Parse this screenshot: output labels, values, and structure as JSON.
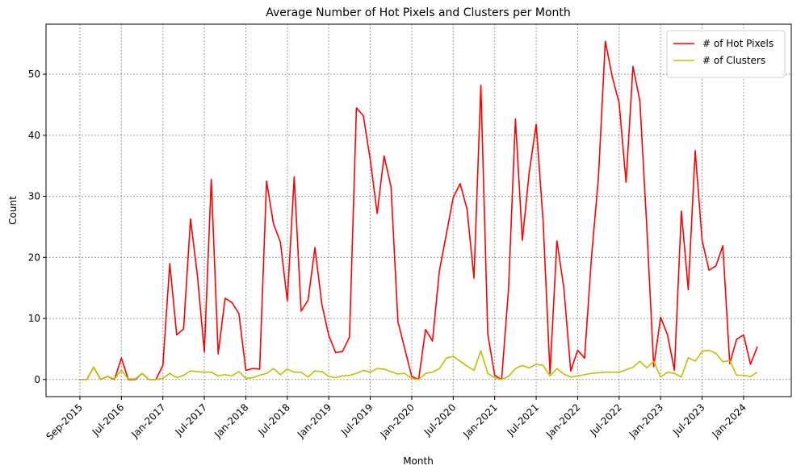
{
  "chart_data": {
    "type": "line",
    "title": "Average Number of Hot Pixels and Clusters per Month",
    "x_label": "Month",
    "y_label": "Count",
    "categories": [
      "Sep-2015",
      null,
      null,
      null,
      null,
      null,
      "Jul-2016",
      null,
      null,
      null,
      null,
      null,
      "Jan-2017",
      null,
      null,
      null,
      null,
      null,
      "Jul-2017",
      null,
      null,
      null,
      null,
      null,
      "Jan-2018",
      null,
      null,
      null,
      null,
      null,
      "Jul-2018",
      null,
      null,
      null,
      null,
      null,
      "Jan-2019",
      null,
      null,
      null,
      null,
      null,
      "Jul-2019",
      null,
      null,
      null,
      null,
      null,
      "Jan-2020",
      null,
      null,
      null,
      null,
      null,
      "Jul-2020",
      null,
      null,
      null,
      null,
      null,
      "Jan-2021",
      null,
      null,
      null,
      null,
      null,
      "Jul-2021",
      null,
      null,
      null,
      null,
      null,
      "Jan-2022",
      null,
      null,
      null,
      null,
      null,
      "Jul-2022",
      null,
      null,
      null,
      null,
      null,
      "Jan-2023",
      null,
      null,
      null,
      null,
      null,
      "Jul-2023",
      null,
      null,
      null,
      null,
      null,
      "Jan-2024",
      null,
      null
    ],
    "series": [
      {
        "name": "# of Hot Pixels",
        "color": "#ff0000",
        "values": [
          0,
          0,
          2,
          0,
          0.5,
          0,
          3.5,
          0,
          0,
          1,
          0,
          0,
          2.3,
          19,
          7.3,
          8.3,
          26.3,
          17,
          4.5,
          32.8,
          4.2,
          13.3,
          12.6,
          10.8,
          1.5,
          1.8,
          1.7,
          32.5,
          25.5,
          22.5,
          12.9,
          33.2,
          11.2,
          13,
          21.6,
          12.3,
          7.2,
          4.4,
          4.6,
          7,
          44.5,
          43.2,
          36,
          27.2,
          36.6,
          31.6,
          9.5,
          5,
          0.5,
          0,
          8.2,
          6.3,
          17.8,
          23.8,
          29.8,
          32.1,
          27.9,
          16.6,
          48.2,
          7.4,
          0.7,
          0,
          14.8,
          42.7,
          22.8,
          34,
          41.8,
          26,
          1,
          22.7,
          15,
          1.4,
          4.8,
          3.5,
          20,
          33,
          55.4,
          49.6,
          45.3,
          32.3,
          51.3,
          45.6,
          25,
          2.1,
          10.2,
          7.3,
          1.5,
          27.6,
          14.7,
          37.5,
          22.8,
          17.9,
          18.6,
          21.9,
          2.6,
          6.6,
          7.3,
          2.5,
          5.4
        ]
      },
      {
        "name": "# of Clusters",
        "color": "#bfbf00",
        "values": [
          0,
          0,
          2,
          0,
          0.5,
          0.1,
          1.5,
          0.1,
          0.1,
          1,
          0,
          0,
          0.2,
          1,
          0.3,
          0.7,
          1.4,
          1.3,
          1.2,
          1.2,
          0.6,
          0.8,
          0.6,
          1.3,
          0.2,
          0.3,
          0.7,
          1,
          1.8,
          0.8,
          1.7,
          1.2,
          1.2,
          0.4,
          1.4,
          1.3,
          0.5,
          0.3,
          0.6,
          0.7,
          1,
          1.5,
          1.2,
          1.8,
          1.7,
          1.3,
          0.9,
          1,
          0.2,
          0,
          1,
          1.2,
          1.8,
          3.5,
          3.8,
          3,
          2.2,
          1.5,
          4.7,
          1,
          0.3,
          0,
          0.5,
          1.8,
          2.3,
          1.9,
          2.5,
          2.3,
          0.6,
          1.8,
          0.9,
          0.4,
          0.6,
          0.8,
          1,
          1.1,
          1.2,
          1.2,
          1.2,
          1.6,
          2,
          3,
          1.9,
          3,
          0.4,
          1.2,
          1,
          0.4,
          3.6,
          3,
          4.6,
          4.8,
          4.3,
          2.9,
          3.1,
          0.7,
          0.7,
          0.5,
          1.2
        ]
      }
    ],
    "xlim": [
      -4.9,
      102.9
    ],
    "ylim": [
      -2.8,
      58.2
    ],
    "yticks": [
      0,
      10,
      20,
      30,
      40,
      50
    ],
    "grid": true,
    "legend": "upper right"
  }
}
